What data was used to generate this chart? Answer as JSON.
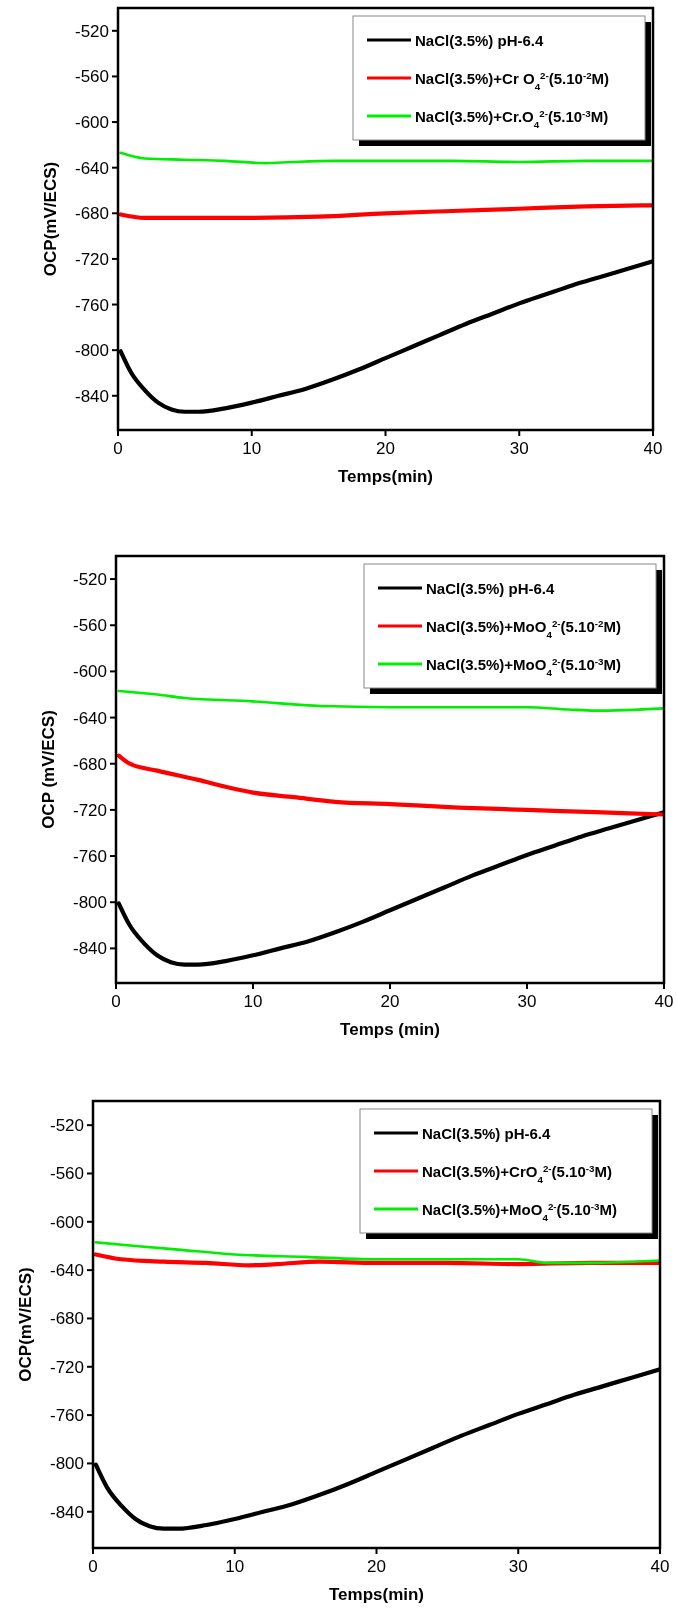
{
  "chart_data": [
    {
      "type": "line",
      "xlabel": "Temps(min)",
      "ylabel": "OCP(mV/ECS)",
      "xlim": [
        0,
        40
      ],
      "ylim": [
        -870,
        -500
      ],
      "xticks": [
        0,
        10,
        20,
        30,
        40
      ],
      "yticks": [
        -520,
        -560,
        -600,
        -640,
        -680,
        -720,
        -760,
        -800,
        -840
      ],
      "legend": "top right",
      "grid": false,
      "line_style": "solid",
      "marker": "none",
      "series": [
        {
          "name": "NaCl(3.5%) pH-6.4",
          "color": "#000000",
          "x": [
            0.2,
            1,
            2,
            3,
            4,
            5,
            6,
            8,
            10,
            12,
            14,
            16,
            18,
            20,
            22,
            24,
            26,
            28,
            30,
            32,
            34,
            36,
            38,
            40
          ],
          "values": [
            -801,
            -820,
            -835,
            -846,
            -852,
            -854,
            -854,
            -851,
            -846,
            -840,
            -834,
            -826,
            -817,
            -807,
            -797,
            -787,
            -777,
            -768,
            -759,
            -751,
            -743,
            -736,
            -729,
            -722
          ]
        },
        {
          "name": "NaCl(3.5%)+Cr O$_{4}$$^{2-}$(5.10$^{-2}$M)",
          "color": "#ff0000",
          "x": [
            0.2,
            2,
            5,
            10,
            15,
            20,
            25,
            30,
            35,
            40
          ],
          "values": [
            -681,
            -684,
            -684,
            -684,
            -683,
            -680,
            -678,
            -676,
            -674,
            -673
          ]
        },
        {
          "name": "NaCl(3.5%)+Cr.O$_{4}$$^{2-}$(5.10$^{-3}$M)",
          "color": "#00ee00",
          "x": [
            0.2,
            2,
            5,
            8,
            11,
            13,
            16,
            20,
            25,
            30,
            35,
            40
          ],
          "values": [
            -627,
            -632,
            -633,
            -634,
            -636,
            -635,
            -634,
            -634,
            -634,
            -635,
            -634,
            -634
          ]
        }
      ]
    },
    {
      "type": "line",
      "xlabel": "Temps (min)",
      "ylabel": "OCP (mV/ECS)",
      "xlim": [
        0,
        40
      ],
      "ylim": [
        -870,
        -500
      ],
      "xticks": [
        0,
        10,
        20,
        30,
        40
      ],
      "yticks": [
        -520,
        -560,
        -600,
        -640,
        -680,
        -720,
        -760,
        -800,
        -840
      ],
      "legend": "top right",
      "grid": false,
      "line_style": "solid",
      "marker": "none",
      "series": [
        {
          "name": "NaCl(3.5%) pH-6.4",
          "color": "#000000",
          "x": [
            0.2,
            1,
            2,
            3,
            4,
            5,
            6,
            8,
            10,
            12,
            14,
            16,
            18,
            20,
            22,
            24,
            26,
            28,
            30,
            32,
            34,
            36,
            38,
            40
          ],
          "values": [
            -801,
            -820,
            -835,
            -846,
            -852,
            -854,
            -854,
            -851,
            -846,
            -840,
            -834,
            -826,
            -817,
            -807,
            -797,
            -787,
            -777,
            -768,
            -759,
            -751,
            -743,
            -736,
            -729,
            -722
          ]
        },
        {
          "name": "NaCl(3.5%)+MoO$_{4}$$^{2-}$(5.10$^{-2}$M)",
          "color": "#ff0000",
          "x": [
            0.2,
            1,
            3,
            6,
            8,
            10,
            13,
            16,
            20,
            25,
            30,
            35,
            40
          ],
          "values": [
            -673,
            -680,
            -686,
            -694,
            -700,
            -705,
            -709,
            -713,
            -715,
            -718,
            -720,
            -722,
            -724
          ]
        },
        {
          "name": "NaCl(3.5%)+MoO$_{4}$$^{2-}$(5.10$^{-3}$M)",
          "color": "#00ee00",
          "x": [
            0.2,
            3,
            5,
            10,
            15,
            20,
            25,
            30,
            33,
            35,
            40
          ],
          "values": [
            -617,
            -620,
            -623,
            -626,
            -630,
            -631,
            -631,
            -631,
            -633,
            -634,
            -632
          ]
        }
      ]
    },
    {
      "type": "line",
      "xlabel": "Temps(min)",
      "ylabel": "OCP(mV/ECS)",
      "xlim": [
        0,
        40
      ],
      "ylim": [
        -870,
        -500
      ],
      "xticks": [
        0,
        10,
        20,
        30,
        40
      ],
      "yticks": [
        -520,
        -560,
        -600,
        -640,
        -680,
        -720,
        -760,
        -800,
        -840
      ],
      "legend": "top right",
      "grid": false,
      "line_style": "solid",
      "marker": "none",
      "series": [
        {
          "name": "NaCl(3.5%) pH-6.4",
          "color": "#000000",
          "x": [
            0.2,
            1,
            2,
            3,
            4,
            5,
            6,
            8,
            10,
            12,
            14,
            16,
            18,
            20,
            22,
            24,
            26,
            28,
            30,
            32,
            34,
            36,
            38,
            40
          ],
          "values": [
            -801,
            -820,
            -835,
            -846,
            -852,
            -854,
            -854,
            -851,
            -846,
            -840,
            -834,
            -826,
            -817,
            -807,
            -797,
            -787,
            -777,
            -768,
            -759,
            -751,
            -743,
            -736,
            -729,
            -722
          ]
        },
        {
          "name": "NaCl(3.5%)+CrO$_{4}$$^{2-}$(5.10$^{-3}$M)",
          "color": "#ff0000",
          "x": [
            0.2,
            2,
            5,
            8,
            11,
            13,
            16,
            20,
            25,
            30,
            35,
            40
          ],
          "values": [
            -627,
            -631,
            -633,
            -634,
            -636,
            -635,
            -633,
            -634,
            -634,
            -635,
            -634,
            -634
          ]
        },
        {
          "name": "NaCl(3.5%)+MoO$_{4}$$^{2-}$(5.10$^{-3}$M)",
          "color": "#00ee00",
          "x": [
            0.2,
            3,
            6,
            10,
            15,
            20,
            25,
            30,
            32,
            35,
            40
          ],
          "values": [
            -617,
            -620,
            -623,
            -627,
            -629,
            -631,
            -631,
            -631,
            -634,
            -634,
            -632
          ]
        }
      ]
    }
  ]
}
